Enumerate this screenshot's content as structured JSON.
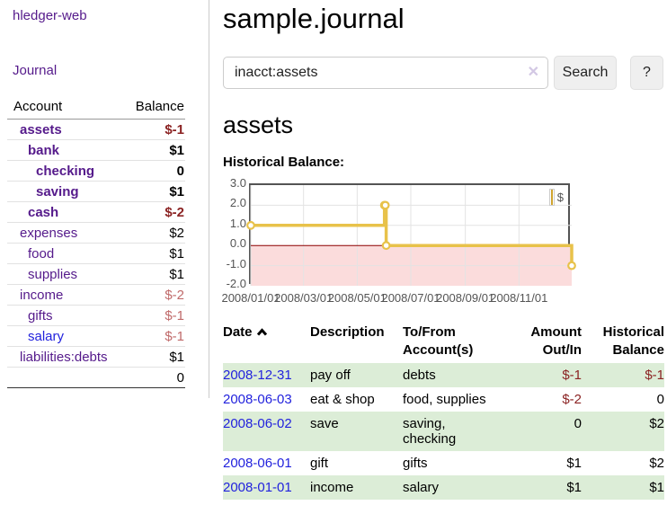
{
  "app": {
    "brand": "hledger-web",
    "nav_journal": "Journal"
  },
  "sidebar": {
    "header": {
      "account": "Account",
      "balance": "Balance"
    },
    "accounts": [
      {
        "name": "assets",
        "depth": 1,
        "balance": "$-1",
        "bold": true,
        "balance_class": "neg",
        "link_class": "purple"
      },
      {
        "name": "bank",
        "depth": 2,
        "balance": "$1",
        "bold": true,
        "balance_class": "",
        "link_class": "purple"
      },
      {
        "name": "checking",
        "depth": 3,
        "balance": "0",
        "bold": true,
        "balance_class": "",
        "link_class": "purple"
      },
      {
        "name": "saving",
        "depth": 3,
        "balance": "$1",
        "bold": true,
        "balance_class": "",
        "link_class": "purple"
      },
      {
        "name": "cash",
        "depth": 2,
        "balance": "$-2",
        "bold": true,
        "balance_class": "neg",
        "link_class": "purple"
      },
      {
        "name": "expenses",
        "depth": 1,
        "balance": "$2",
        "bold": false,
        "balance_class": "",
        "link_class": "purple"
      },
      {
        "name": "food",
        "depth": 2,
        "balance": "$1",
        "bold": false,
        "balance_class": "",
        "link_class": "purple"
      },
      {
        "name": "supplies",
        "depth": 2,
        "balance": "$1",
        "bold": false,
        "balance_class": "",
        "link_class": "purple"
      },
      {
        "name": "income",
        "depth": 1,
        "balance": "$-2",
        "bold": false,
        "balance_class": "neg-dim",
        "link_class": "purple"
      },
      {
        "name": "gifts",
        "depth": 2,
        "balance": "$-1",
        "bold": false,
        "balance_class": "neg-dim",
        "link_class": "purple"
      },
      {
        "name": "salary",
        "depth": 2,
        "balance": "$-1",
        "bold": false,
        "balance_class": "neg-dim",
        "link_class": "bluelink"
      },
      {
        "name": "liabilities:debts",
        "depth": 1,
        "balance": "$1",
        "bold": false,
        "balance_class": "",
        "link_class": "purple"
      }
    ],
    "total": "0"
  },
  "main": {
    "title": "sample.journal",
    "search": {
      "value": "inacct:assets",
      "clear_icon": "✕",
      "button_label": "Search",
      "help_label": "?"
    },
    "account_heading": "assets",
    "chart_label": "Historical Balance:"
  },
  "register": {
    "headers": {
      "date": "Date",
      "description": "Description",
      "accounts": "To/From\nAccount(s)",
      "amount": "Amount\nOut/In",
      "balance": "Historical\nBalance"
    },
    "rows": [
      {
        "date": "2008-12-31",
        "description": "pay off",
        "accounts": "debts",
        "amount": "$-1",
        "amount_class": "neg",
        "balance": "$-1",
        "balance_class": "neg",
        "green": true
      },
      {
        "date": "2008-06-03",
        "description": "eat & shop",
        "accounts": "food, supplies",
        "amount": "$-2",
        "amount_class": "neg",
        "balance": "0",
        "balance_class": "",
        "green": false
      },
      {
        "date": "2008-06-02",
        "description": "save",
        "accounts": "saving,\nchecking",
        "amount": "0",
        "amount_class": "",
        "balance": "$2",
        "balance_class": "",
        "green": true
      },
      {
        "date": "2008-06-01",
        "description": "gift",
        "accounts": "gifts",
        "amount": "$1",
        "amount_class": "",
        "balance": "$2",
        "balance_class": "",
        "green": false
      },
      {
        "date": "2008-01-01",
        "description": "income",
        "accounts": "salary",
        "amount": "$1",
        "amount_class": "",
        "balance": "$1",
        "balance_class": "",
        "green": true
      }
    ]
  },
  "chart_data": {
    "type": "line",
    "title": "Historical Balance:",
    "step": true,
    "series": [
      {
        "name": "$",
        "color": "#e8c24a",
        "points": [
          [
            "2008-01-01",
            1
          ],
          [
            "2008-06-01",
            2
          ],
          [
            "2008-06-02",
            2
          ],
          [
            "2008-06-03",
            0
          ],
          [
            "2008-12-31",
            -1
          ]
        ]
      }
    ],
    "xlim": [
      "2008-01-01",
      "2008-12-31"
    ],
    "ylim": [
      -2,
      3
    ],
    "x_ticks": [
      {
        "value": "2008-01-01",
        "label": "2008/01/01"
      },
      {
        "value": "2008-03-01",
        "label": "2008/03/01"
      },
      {
        "value": "2008-05-01",
        "label": "2008/05/01"
      },
      {
        "value": "2008-07-01",
        "label": "2008/07/01"
      },
      {
        "value": "2008-09-01",
        "label": "2008/09/01"
      },
      {
        "value": "2008-11-01",
        "label": "2008/11/01"
      }
    ],
    "y_ticks": [
      {
        "value": 3,
        "label": "3.0"
      },
      {
        "value": 2,
        "label": "2.0"
      },
      {
        "value": 1,
        "label": "1.0"
      },
      {
        "value": 0,
        "label": "0.0"
      },
      {
        "value": -1,
        "label": "-1.0"
      },
      {
        "value": -2,
        "label": "-2.0"
      }
    ],
    "grid": true,
    "gridline_color": "#e3e3e3",
    "zero_line_color": "#8b0000",
    "negative_region_color": "#fbdcdc",
    "legend": {
      "label": "$",
      "position": "top-right"
    }
  }
}
